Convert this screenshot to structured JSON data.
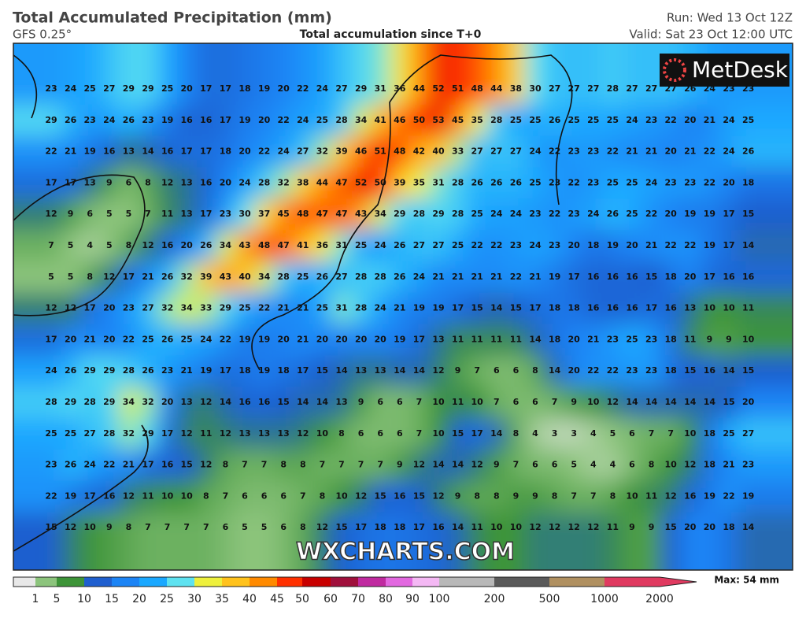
{
  "header": {
    "title": "Total Accumulated Precipitation (mm)",
    "model": "GFS 0.25°",
    "subtitle": "Total accumulation since T+0",
    "run": "Run: Wed 13 Oct 12Z",
    "valid": "Valid: Sat 23 Oct 12:00 UTC"
  },
  "logo": "MetDesk",
  "watermark": "WXCHARTS.COM",
  "map": {
    "rows": [
      [
        23,
        24,
        25,
        27,
        29,
        29,
        25,
        20,
        17,
        17,
        18,
        19,
        20,
        22,
        24,
        27,
        29,
        31,
        36,
        44,
        52,
        51,
        48,
        44,
        38,
        30,
        27,
        27,
        27,
        28,
        27,
        27,
        27,
        26,
        24,
        23,
        23
      ],
      [
        29,
        26,
        23,
        24,
        26,
        23,
        19,
        16,
        16,
        17,
        19,
        20,
        22,
        24,
        25,
        28,
        34,
        41,
        46,
        50,
        53,
        45,
        35,
        28,
        25,
        25,
        26,
        25,
        25,
        25,
        24,
        23,
        22,
        20,
        21,
        24,
        25
      ],
      [
        22,
        21,
        19,
        16,
        13,
        14,
        16,
        17,
        17,
        18,
        20,
        22,
        24,
        27,
        32,
        39,
        46,
        51,
        48,
        42,
        40,
        33,
        27,
        27,
        27,
        24,
        22,
        23,
        23,
        22,
        21,
        21,
        20,
        21,
        22,
        24,
        26
      ],
      [
        17,
        17,
        13,
        9,
        6,
        8,
        12,
        13,
        16,
        20,
        24,
        28,
        32,
        38,
        44,
        47,
        52,
        50,
        39,
        35,
        31,
        28,
        26,
        26,
        26,
        25,
        23,
        22,
        23,
        25,
        25,
        24,
        23,
        23,
        22,
        20,
        18
      ],
      [
        12,
        9,
        6,
        5,
        5,
        7,
        11,
        13,
        17,
        23,
        30,
        37,
        45,
        48,
        47,
        47,
        43,
        34,
        29,
        28,
        29,
        28,
        25,
        24,
        24,
        23,
        22,
        23,
        24,
        26,
        25,
        22,
        20,
        19,
        19,
        17,
        15
      ],
      [
        7,
        5,
        4,
        5,
        8,
        12,
        16,
        20,
        26,
        34,
        43,
        48,
        47,
        41,
        36,
        31,
        25,
        24,
        26,
        27,
        27,
        25,
        22,
        22,
        23,
        24,
        23,
        20,
        18,
        19,
        20,
        21,
        22,
        22,
        19,
        17,
        14
      ],
      [
        5,
        5,
        8,
        12,
        17,
        21,
        26,
        32,
        39,
        43,
        40,
        34,
        28,
        25,
        26,
        27,
        28,
        28,
        26,
        24,
        21,
        21,
        21,
        21,
        22,
        21,
        19,
        17,
        16,
        16,
        16,
        15,
        18,
        20,
        17,
        16,
        16
      ],
      [
        12,
        12,
        17,
        20,
        23,
        27,
        32,
        34,
        33,
        29,
        25,
        22,
        21,
        21,
        25,
        31,
        28,
        24,
        21,
        19,
        19,
        17,
        15,
        14,
        15,
        17,
        18,
        18,
        16,
        16,
        16,
        17,
        16,
        13,
        10,
        10,
        11
      ],
      [
        17,
        20,
        21,
        20,
        22,
        25,
        26,
        25,
        24,
        22,
        19,
        19,
        20,
        21,
        20,
        20,
        20,
        20,
        19,
        17,
        13,
        11,
        11,
        11,
        11,
        14,
        18,
        20,
        21,
        23,
        25,
        23,
        18,
        11,
        9,
        9,
        10
      ],
      [
        24,
        26,
        29,
        29,
        28,
        26,
        23,
        21,
        19,
        17,
        18,
        19,
        18,
        17,
        15,
        14,
        13,
        13,
        14,
        14,
        12,
        9,
        7,
        6,
        6,
        8,
        14,
        20,
        22,
        22,
        23,
        23,
        18,
        15,
        16,
        14,
        15
      ],
      [
        28,
        29,
        28,
        29,
        34,
        32,
        20,
        13,
        12,
        14,
        16,
        16,
        15,
        14,
        14,
        13,
        9,
        6,
        6,
        7,
        10,
        11,
        10,
        7,
        6,
        6,
        7,
        9,
        10,
        12,
        14,
        14,
        14,
        14,
        14,
        15,
        20
      ],
      [
        25,
        25,
        27,
        28,
        32,
        29,
        17,
        12,
        11,
        12,
        13,
        13,
        13,
        12,
        10,
        8,
        6,
        6,
        6,
        7,
        10,
        15,
        17,
        14,
        8,
        4,
        3,
        3,
        4,
        5,
        6,
        7,
        7,
        10,
        18,
        25,
        27
      ],
      [
        23,
        26,
        24,
        22,
        21,
        17,
        16,
        15,
        12,
        8,
        7,
        7,
        8,
        8,
        7,
        7,
        7,
        7,
        9,
        12,
        14,
        14,
        12,
        9,
        7,
        6,
        6,
        5,
        4,
        4,
        6,
        8,
        10,
        12,
        18,
        21,
        23
      ],
      [
        22,
        19,
        17,
        16,
        12,
        11,
        10,
        10,
        8,
        7,
        6,
        6,
        6,
        7,
        8,
        10,
        12,
        15,
        16,
        15,
        12,
        9,
        8,
        8,
        9,
        9,
        8,
        7,
        7,
        8,
        10,
        11,
        12,
        16,
        19,
        22,
        19
      ],
      [
        15,
        12,
        10,
        9,
        8,
        7,
        7,
        7,
        7,
        6,
        5,
        5,
        6,
        8,
        12,
        15,
        17,
        18,
        18,
        17,
        16,
        14,
        11,
        10,
        10,
        12,
        12,
        12,
        12,
        11,
        9,
        9,
        15,
        20,
        20,
        18,
        14
      ]
    ]
  },
  "colorbar": {
    "ticks": [
      1,
      5,
      10,
      15,
      20,
      25,
      30,
      35,
      40,
      45,
      50,
      60,
      70,
      80,
      90,
      100,
      200,
      500,
      1000,
      2000
    ],
    "colors": [
      "#e8e8e8",
      "#8cc47c",
      "#3d9438",
      "#1f5fcf",
      "#1c84f5",
      "#1aa8ff",
      "#5ee2f0",
      "#eef03c",
      "#ffc21c",
      "#ff8a00",
      "#ff3000",
      "#c80000",
      "#a0103c",
      "#c02aa0",
      "#e268e0",
      "#f4b8f4",
      "#b8b8b8",
      "#5a5a5a",
      "#b09060",
      "#e03a60"
    ],
    "max": "Max: 54 mm"
  }
}
